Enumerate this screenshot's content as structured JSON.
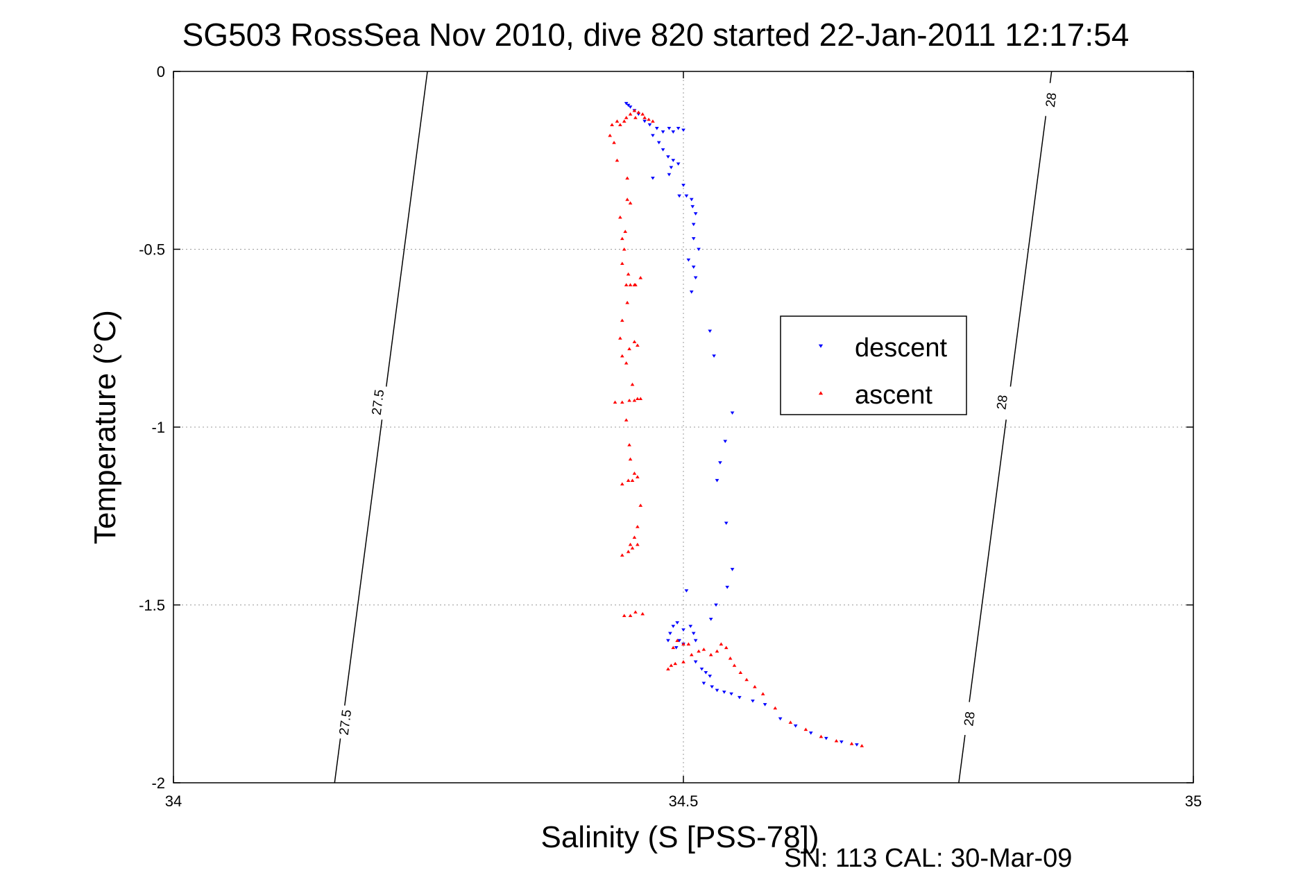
{
  "chart_data": {
    "type": "scatter",
    "title": "SG503 RossSea Nov 2010, dive 820 started 22-Jan-2011 12:17:54",
    "xlabel": "Salinity (S [PSS-78])",
    "ylabel": "Temperature (°C)",
    "footnote": "SN: 113  CAL: 30-Mar-09",
    "xlim": [
      34,
      35
    ],
    "ylim": [
      -2,
      0
    ],
    "xticks": [
      34,
      34.5,
      35
    ],
    "yticks": [
      0,
      -0.5,
      -1,
      -1.5,
      -2
    ],
    "xtick_labels": [
      "34",
      "34.5",
      "35"
    ],
    "ytick_labels": [
      "0",
      "-0.5",
      "-1",
      "-1.5",
      "-2"
    ],
    "grid": true,
    "legend_position": "right-center",
    "density_contours": [
      {
        "label": "27.5",
        "line": [
          [
            34.158,
            -2.0
          ],
          [
            34.249,
            0.0
          ]
        ],
        "label_points": [
          [
            34.168,
            -1.83
          ],
          [
            34.2,
            -0.93
          ]
        ]
      },
      {
        "label": "28",
        "line": [
          [
            34.77,
            -2.0
          ],
          [
            34.861,
            0.0
          ]
        ],
        "label_points": [
          [
            34.78,
            -1.82
          ],
          [
            34.812,
            -0.93
          ],
          [
            34.86,
            -0.08
          ]
        ]
      }
    ],
    "series": [
      {
        "name": "descent",
        "color": "#0000ff",
        "marker": "triangle-down",
        "points": [
          [
            34.444,
            -0.09
          ],
          [
            34.446,
            -0.095
          ],
          [
            34.448,
            -0.1
          ],
          [
            34.452,
            -0.11
          ],
          [
            34.456,
            -0.12
          ],
          [
            34.462,
            -0.14
          ],
          [
            34.467,
            -0.15
          ],
          [
            34.474,
            -0.16
          ],
          [
            34.48,
            -0.17
          ],
          [
            34.486,
            -0.16
          ],
          [
            34.49,
            -0.17
          ],
          [
            34.495,
            -0.16
          ],
          [
            34.5,
            -0.165
          ],
          [
            34.47,
            -0.18
          ],
          [
            34.476,
            -0.2
          ],
          [
            34.48,
            -0.22
          ],
          [
            34.485,
            -0.24
          ],
          [
            34.49,
            -0.25
          ],
          [
            34.495,
            -0.26
          ],
          [
            34.488,
            -0.27
          ],
          [
            34.486,
            -0.29
          ],
          [
            34.47,
            -0.3
          ],
          [
            34.5,
            -0.32
          ],
          [
            34.496,
            -0.35
          ],
          [
            34.503,
            -0.35
          ],
          [
            34.508,
            -0.36
          ],
          [
            34.509,
            -0.38
          ],
          [
            34.512,
            -0.4
          ],
          [
            34.51,
            -0.43
          ],
          [
            34.51,
            -0.47
          ],
          [
            34.515,
            -0.5
          ],
          [
            34.505,
            -0.53
          ],
          [
            34.51,
            -0.55
          ],
          [
            34.512,
            -0.58
          ],
          [
            34.508,
            -0.62
          ],
          [
            34.526,
            -0.73
          ],
          [
            34.53,
            -0.8
          ],
          [
            34.548,
            -0.96
          ],
          [
            34.541,
            -1.04
          ],
          [
            34.536,
            -1.1
          ],
          [
            34.533,
            -1.15
          ],
          [
            34.542,
            -1.27
          ],
          [
            34.548,
            -1.4
          ],
          [
            34.543,
            -1.45
          ],
          [
            34.503,
            -1.46
          ],
          [
            34.532,
            -1.5
          ],
          [
            34.527,
            -1.54
          ],
          [
            34.494,
            -1.55
          ],
          [
            34.49,
            -1.56
          ],
          [
            34.487,
            -1.58
          ],
          [
            34.5,
            -1.57
          ],
          [
            34.507,
            -1.56
          ],
          [
            34.51,
            -1.58
          ],
          [
            34.512,
            -1.6
          ],
          [
            34.5,
            -1.61
          ],
          [
            34.493,
            -1.62
          ],
          [
            34.496,
            -1.6
          ],
          [
            34.485,
            -1.6
          ],
          [
            34.512,
            -1.66
          ],
          [
            34.518,
            -1.68
          ],
          [
            34.522,
            -1.69
          ],
          [
            34.526,
            -1.7
          ],
          [
            34.52,
            -1.72
          ],
          [
            34.528,
            -1.73
          ],
          [
            34.533,
            -1.74
          ],
          [
            34.54,
            -1.745
          ],
          [
            34.547,
            -1.75
          ],
          [
            34.555,
            -1.76
          ],
          [
            34.568,
            -1.77
          ],
          [
            34.58,
            -1.78
          ],
          [
            34.595,
            -1.82
          ],
          [
            34.61,
            -1.84
          ],
          [
            34.625,
            -1.86
          ],
          [
            34.64,
            -1.875
          ],
          [
            34.655,
            -1.885
          ],
          [
            34.67,
            -1.893
          ]
        ]
      },
      {
        "name": "ascent",
        "color": "#ff0000",
        "marker": "triangle-up",
        "points": [
          [
            34.438,
            -0.15
          ],
          [
            34.442,
            -0.14
          ],
          [
            34.448,
            -0.12
          ],
          [
            34.452,
            -0.11
          ],
          [
            34.456,
            -0.115
          ],
          [
            34.46,
            -0.12
          ],
          [
            34.453,
            -0.13
          ],
          [
            34.462,
            -0.13
          ],
          [
            34.466,
            -0.135
          ],
          [
            34.47,
            -0.14
          ],
          [
            34.444,
            -0.13
          ],
          [
            34.43,
            -0.15
          ],
          [
            34.435,
            -0.14
          ],
          [
            34.428,
            -0.18
          ],
          [
            34.432,
            -0.2
          ],
          [
            34.435,
            -0.25
          ],
          [
            34.445,
            -0.3
          ],
          [
            34.445,
            -0.36
          ],
          [
            34.448,
            -0.37
          ],
          [
            34.438,
            -0.41
          ],
          [
            34.443,
            -0.45
          ],
          [
            34.44,
            -0.47
          ],
          [
            34.442,
            -0.5
          ],
          [
            34.44,
            -0.54
          ],
          [
            34.446,
            -0.57
          ],
          [
            34.444,
            -0.6
          ],
          [
            34.448,
            -0.6
          ],
          [
            34.452,
            -0.6
          ],
          [
            34.453,
            -0.6
          ],
          [
            34.458,
            -0.58
          ],
          [
            34.445,
            -0.65
          ],
          [
            34.44,
            -0.7
          ],
          [
            34.438,
            -0.75
          ],
          [
            34.44,
            -0.8
          ],
          [
            34.447,
            -0.78
          ],
          [
            34.452,
            -0.76
          ],
          [
            34.455,
            -0.77
          ],
          [
            34.444,
            -0.82
          ],
          [
            34.45,
            -0.88
          ],
          [
            34.455,
            -0.92
          ],
          [
            34.433,
            -0.93
          ],
          [
            34.44,
            -0.93
          ],
          [
            34.447,
            -0.925
          ],
          [
            34.452,
            -0.925
          ],
          [
            34.458,
            -0.92
          ],
          [
            34.444,
            -0.98
          ],
          [
            34.447,
            -1.05
          ],
          [
            34.448,
            -1.09
          ],
          [
            34.44,
            -1.16
          ],
          [
            34.446,
            -1.15
          ],
          [
            34.45,
            -1.15
          ],
          [
            34.455,
            -1.14
          ],
          [
            34.452,
            -1.13
          ],
          [
            34.458,
            -1.22
          ],
          [
            34.455,
            -1.28
          ],
          [
            34.452,
            -1.31
          ],
          [
            34.448,
            -1.33
          ],
          [
            34.44,
            -1.36
          ],
          [
            34.446,
            -1.35
          ],
          [
            34.45,
            -1.34
          ],
          [
            34.455,
            -1.33
          ],
          [
            34.442,
            -1.53
          ],
          [
            34.448,
            -1.53
          ],
          [
            34.453,
            -1.52
          ],
          [
            34.46,
            -1.525
          ],
          [
            34.49,
            -1.62
          ],
          [
            34.494,
            -1.6
          ],
          [
            34.5,
            -1.61
          ],
          [
            34.505,
            -1.61
          ],
          [
            34.485,
            -1.68
          ],
          [
            34.488,
            -1.67
          ],
          [
            34.492,
            -1.665
          ],
          [
            34.5,
            -1.66
          ],
          [
            34.508,
            -1.64
          ],
          [
            34.515,
            -1.63
          ],
          [
            34.52,
            -1.625
          ],
          [
            34.527,
            -1.64
          ],
          [
            34.533,
            -1.63
          ],
          [
            34.537,
            -1.61
          ],
          [
            34.542,
            -1.62
          ],
          [
            34.546,
            -1.65
          ],
          [
            34.55,
            -1.67
          ],
          [
            34.556,
            -1.69
          ],
          [
            34.562,
            -1.71
          ],
          [
            34.57,
            -1.73
          ],
          [
            34.578,
            -1.75
          ],
          [
            34.59,
            -1.79
          ],
          [
            34.605,
            -1.83
          ],
          [
            34.62,
            -1.85
          ],
          [
            34.635,
            -1.87
          ],
          [
            34.65,
            -1.882
          ],
          [
            34.665,
            -1.89
          ],
          [
            34.675,
            -1.896
          ]
        ]
      }
    ]
  }
}
